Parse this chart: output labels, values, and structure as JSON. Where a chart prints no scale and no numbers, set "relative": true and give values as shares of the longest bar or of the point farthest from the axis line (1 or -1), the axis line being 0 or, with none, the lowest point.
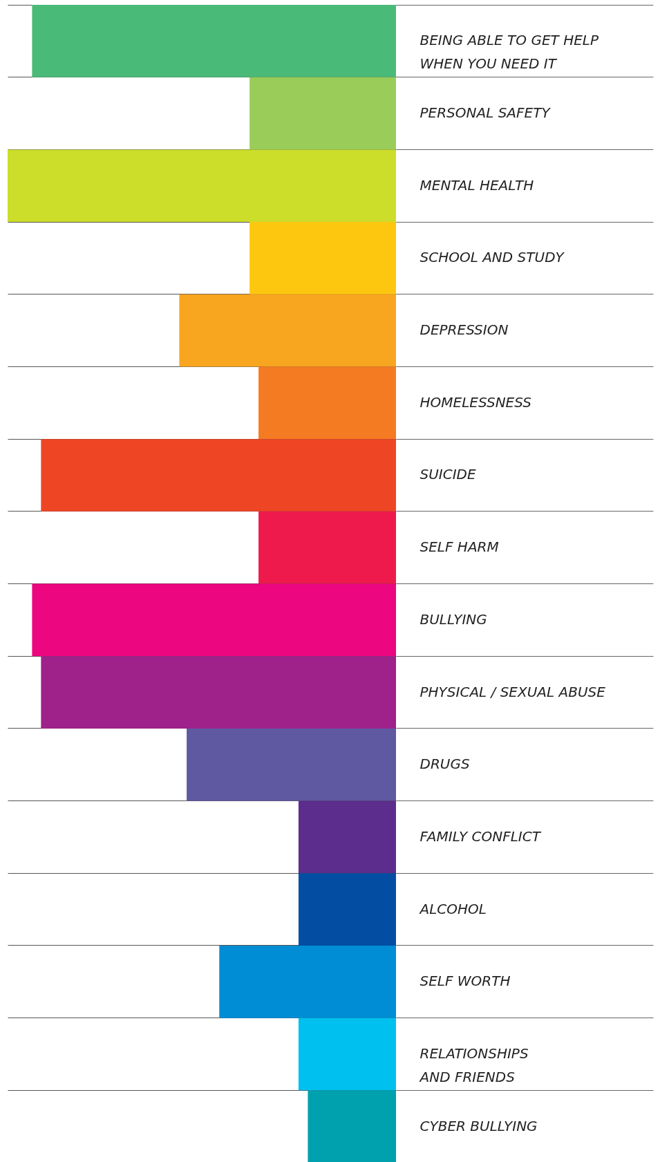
{
  "chart_data": {
    "type": "bar",
    "orientation": "horizontal",
    "relative": true,
    "grid": "y",
    "categories": [
      "BEING ABLE TO GET HELP\nWHEN YOU NEED IT",
      "PERSONAL SAFETY",
      "MENTAL HEALTH",
      "SCHOOL AND STUDY",
      "DEPRESSION",
      "HOMELESSNESS",
      "SUICIDE",
      "SELF HARM",
      "BULLYING",
      "PHYSICAL / SEXUAL ABUSE",
      "DRUGS",
      "FAMILY CONFLICT",
      "ALCOHOL",
      "SELF WORTH",
      "RELATIONSHIPS\nAND FRIENDS",
      "CYBER BULLYING"
    ],
    "values": [
      0.937,
      0.377,
      1,
      0.377,
      0.558,
      0.354,
      0.914,
      0.354,
      0.937,
      0.914,
      0.539,
      0.251,
      0.251,
      0.455,
      0.251,
      0.227
    ],
    "colors": [
      "#4aba78",
      "#99cc58",
      "#ccdd2a",
      "#fec70f",
      "#f8a520",
      "#f57b23",
      "#ee4524",
      "#ee1a4b",
      "#ec067f",
      "#9e228a",
      "#5f59a1",
      "#5c2d8c",
      "#034ea2",
      "#008dd5",
      "#00c0f0",
      "#00a1ae"
    ]
  }
}
